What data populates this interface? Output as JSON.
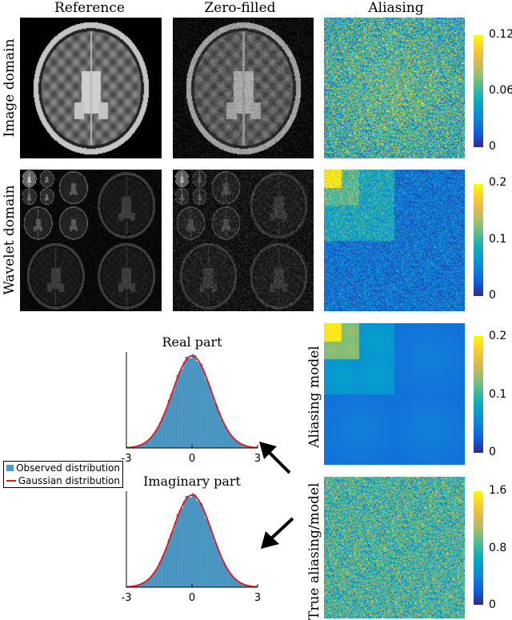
{
  "columns": {
    "reference": "Reference",
    "zero_filled": "Zero-filled",
    "aliasing": "Aliasing"
  },
  "rows": {
    "image_domain": "Image domain",
    "wavelet_domain": "Wavelet domain",
    "aliasing_model": "Aliasing model",
    "true_aliasing_model": "True aliasing/model"
  },
  "colorbars": [
    {
      "name": "image-aliasing",
      "ticks": [
        "0.12",
        "0.06",
        "0"
      ],
      "range": [
        0,
        0.12
      ]
    },
    {
      "name": "wavelet-aliasing",
      "ticks": [
        "0.2",
        "0.1",
        "0"
      ],
      "range": [
        0,
        0.2
      ]
    },
    {
      "name": "aliasing-model",
      "ticks": [
        "0.2",
        "0.1",
        "0"
      ],
      "range": [
        0,
        0.2
      ]
    },
    {
      "name": "true-aliasing-model",
      "ticks": [
        "1.6",
        "0.8",
        "0"
      ],
      "range": [
        0,
        1.6
      ]
    }
  ],
  "legend": {
    "observed": "Observed distribution",
    "gaussian": "Gaussian distribution",
    "observed_color": "#4a9bc8",
    "gaussian_color": "#e8141c"
  },
  "chart_data": [
    {
      "type": "bar",
      "title": "Real part",
      "xlim": [
        -3,
        3
      ],
      "x_ticks": [
        "-3",
        "0",
        "3"
      ],
      "bins": 60,
      "mean": 0,
      "std": 0.9,
      "overlay": "gaussian"
    },
    {
      "type": "bar",
      "title": "Imaginary part",
      "xlim": [
        -3,
        3
      ],
      "x_ticks": [
        "-3",
        "0",
        "3"
      ],
      "bins": 60,
      "mean": 0,
      "std": 0.9,
      "overlay": "gaussian"
    }
  ]
}
